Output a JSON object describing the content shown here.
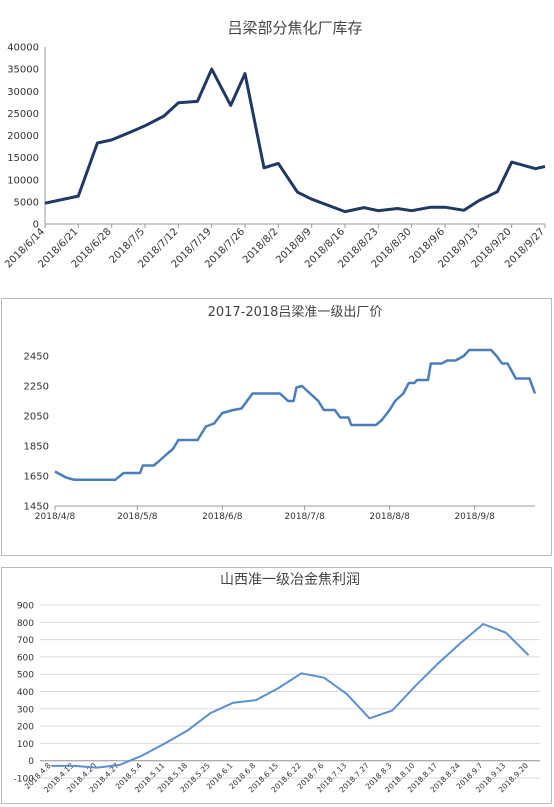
{
  "chart_data": [
    {
      "type": "line",
      "title": "吕梁部分焦化厂库存",
      "color": "#203864",
      "x": [
        "2018/6/14",
        "2018/6/21",
        "2018/6/25",
        "2018/6/28",
        "2018/7/2",
        "2018/7/5",
        "2018/7/9",
        "2018/7/12",
        "2018/7/16",
        "2018/7/19",
        "2018/7/23",
        "2018/7/26",
        "2018/7/30",
        "2018/8/2",
        "2018/8/6",
        "2018/8/9",
        "2018/8/16",
        "2018/8/20",
        "2018/8/23",
        "2018/8/27",
        "2018/8/30",
        "2018/9/3",
        "2018/9/6",
        "2018/9/10",
        "2018/9/13",
        "2018/9/17",
        "2018/9/20",
        "2018/9/25",
        "2018/9/27"
      ],
      "values": [
        4700,
        6300,
        18300,
        19000,
        20800,
        22200,
        24400,
        27400,
        27700,
        35000,
        26800,
        34000,
        12700,
        13700,
        7200,
        5600,
        2800,
        3700,
        3000,
        3500,
        3000,
        3800,
        3800,
        3100,
        5200,
        7300,
        14000,
        12500,
        13000
      ],
      "xlim": [
        "2018/6/14",
        "2018/9/27"
      ],
      "xticks": [
        "2018/6/14",
        "2018/6/21",
        "2018/6/28",
        "2018/7/5",
        "2018/7/12",
        "2018/7/19",
        "2018/7/26",
        "2018/8/2",
        "2018/8/9",
        "2018/8/16",
        "2018/8/23",
        "2018/8/30",
        "2018/9/6",
        "2018/9/13",
        "2018/9/20",
        "2018/9/27"
      ],
      "ylim": [
        0,
        40000
      ],
      "yticks": [
        0,
        5000,
        10000,
        15000,
        20000,
        25000,
        30000,
        35000,
        40000
      ],
      "grid": false
    },
    {
      "type": "line",
      "title": "2017-2018吕梁准一级出厂价",
      "color": "#4a7ebb",
      "x": [
        "2018/4/8",
        "2018/4/10",
        "2018/4/12",
        "2018/4/15",
        "2018/4/30",
        "2018/5/3",
        "2018/5/9",
        "2018/5/10",
        "2018/5/14",
        "2018/5/16",
        "2018/5/19",
        "2018/5/21",
        "2018/5/23",
        "2018/5/30",
        "2018/6/2",
        "2018/6/5",
        "2018/6/8",
        "2018/6/12",
        "2018/6/15",
        "2018/6/19",
        "2018/6/29",
        "2018/7/2",
        "2018/7/4",
        "2018/7/5",
        "2018/7/7",
        "2018/7/10",
        "2018/7/13",
        "2018/7/15",
        "2018/7/19",
        "2018/7/21",
        "2018/7/24",
        "2018/7/25",
        "2018/8/3",
        "2018/8/5",
        "2018/8/8",
        "2018/8/10",
        "2018/8/13",
        "2018/8/15",
        "2018/8/17",
        "2018/8/18",
        "2018/8/22",
        "2018/8/23",
        "2018/8/27",
        "2018/8/29",
        "2018/9/1",
        "2018/9/4",
        "2018/9/6",
        "2018/9/14",
        "2018/9/16",
        "2018/9/18",
        "2018/9/20",
        "2018/9/23",
        "2018/9/28",
        "2018/9/30"
      ],
      "values": [
        1680,
        1660,
        1640,
        1625,
        1625,
        1670,
        1670,
        1720,
        1720,
        1750,
        1800,
        1830,
        1890,
        1890,
        1980,
        2000,
        2070,
        2090,
        2100,
        2200,
        2200,
        2150,
        2150,
        2240,
        2250,
        2200,
        2150,
        2090,
        2090,
        2040,
        2040,
        1990,
        1990,
        2020,
        2090,
        2150,
        2200,
        2270,
        2270,
        2290,
        2290,
        2400,
        2400,
        2420,
        2420,
        2450,
        2490,
        2490,
        2450,
        2400,
        2400,
        2300,
        2300,
        2200
      ],
      "xlim": [
        "2018/4/8",
        "2018/9/30"
      ],
      "xticks": [
        "2018/4/8",
        "2018/5/8",
        "2018/6/8",
        "2018/7/8",
        "2018/8/8",
        "2018/9/8"
      ],
      "ylim": [
        1450,
        2550
      ],
      "yticks": [
        1450,
        1650,
        1850,
        2050,
        2250,
        2450
      ],
      "grid": false
    },
    {
      "type": "line",
      "title": "山西准一级冶金焦利润",
      "color": "#5b8fd0",
      "categories": [
        "2018.4.8",
        "2018.4.13",
        "2018.4.20",
        "2018.4.27",
        "2018.5.4",
        "2018.5.11",
        "2018.5.18",
        "2018.5.25",
        "2018.6.1",
        "2018.6.8",
        "2018.6.15",
        "2018.6.22",
        "2018.7.6",
        "2018.7.13",
        "2018.7.27",
        "2018.8.3",
        "2018.8.10",
        "2018.8.17",
        "2018.8.24",
        "2018.9.7",
        "2018.9.13",
        "2018.9.20"
      ],
      "values": [
        -30,
        -30,
        -40,
        -25,
        30,
        100,
        175,
        275,
        335,
        350,
        420,
        505,
        480,
        385,
        245,
        290,
        430,
        560,
        680,
        790,
        740,
        610
      ],
      "ylim": [
        -100,
        900
      ],
      "yticks": [
        -100,
        0,
        100,
        200,
        300,
        400,
        500,
        600,
        700,
        800,
        900
      ],
      "grid": true
    }
  ]
}
